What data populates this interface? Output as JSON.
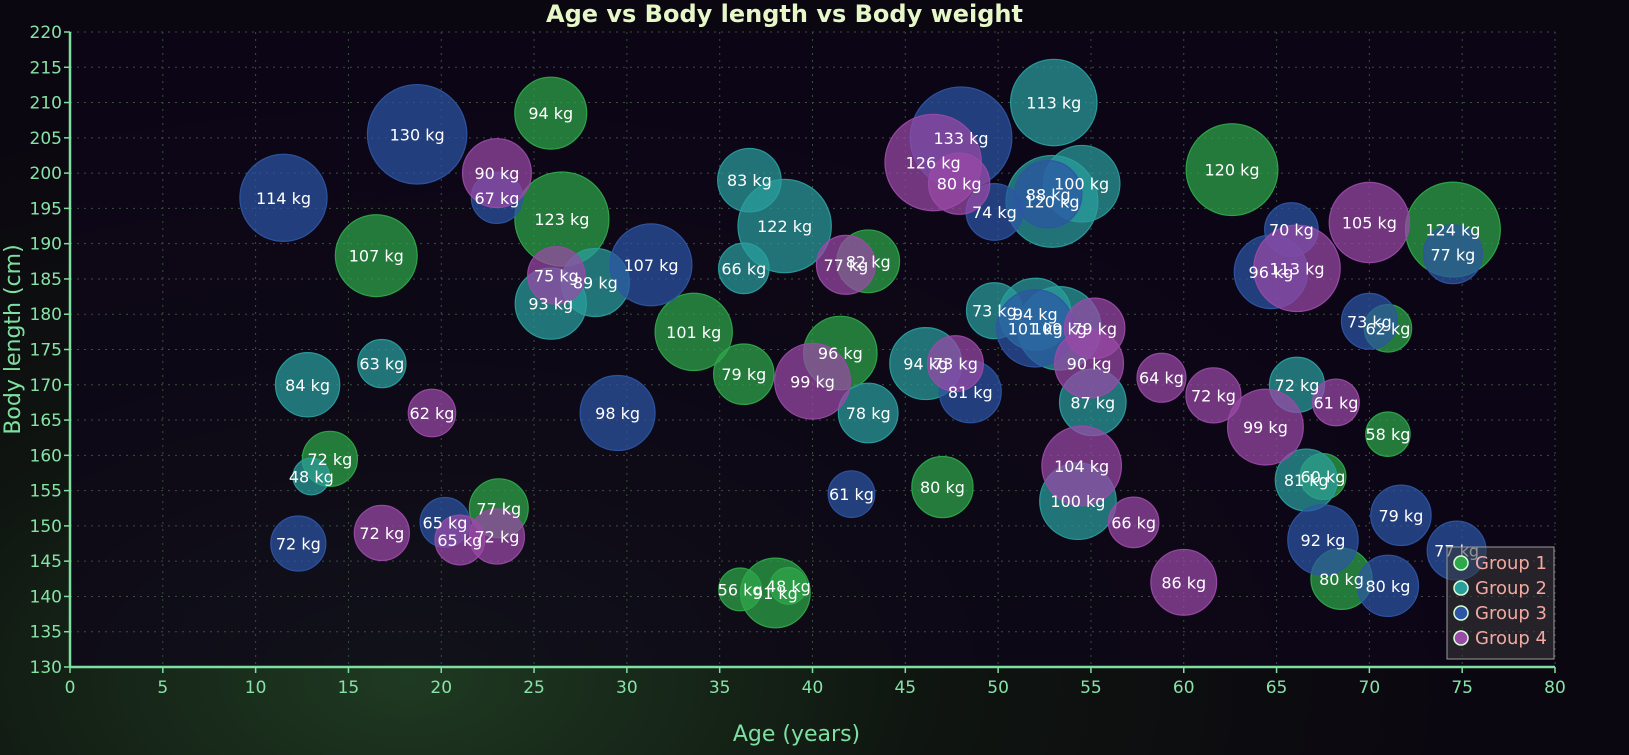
{
  "chart_data": {
    "type": "bubble",
    "title": "Age vs Body length vs Body weight",
    "xlabel": "Age (years)",
    "ylabel": "Body length (cm)",
    "xlim": [
      0,
      80
    ],
    "ylim": [
      130,
      220
    ],
    "x_ticks": [
      0,
      5,
      10,
      15,
      20,
      25,
      30,
      35,
      40,
      45,
      50,
      55,
      60,
      65,
      70,
      75,
      80
    ],
    "y_ticks": [
      130,
      135,
      140,
      145,
      150,
      155,
      160,
      165,
      170,
      175,
      180,
      185,
      190,
      195,
      200,
      205,
      210,
      215,
      220
    ],
    "grid": true,
    "unit": "kg",
    "legend_position": "bottom-right",
    "series": [
      {
        "name": "Group 1",
        "color": "#2ea84a",
        "points": [
          {
            "age": 25.9,
            "length": 208.5,
            "weight": 94
          },
          {
            "age": 26.5,
            "length": 193.5,
            "weight": 123
          },
          {
            "age": 16.5,
            "length": 188.3,
            "weight": 107
          },
          {
            "age": 14.0,
            "length": 159.5,
            "weight": 72
          },
          {
            "age": 23.1,
            "length": 152.5,
            "weight": 77
          },
          {
            "age": 33.6,
            "length": 177.5,
            "weight": 101
          },
          {
            "age": 36.3,
            "length": 171.5,
            "weight": 79
          },
          {
            "age": 38.0,
            "length": 140.5,
            "weight": 91
          },
          {
            "age": 36.1,
            "length": 141.0,
            "weight": 56
          },
          {
            "age": 38.7,
            "length": 141.5,
            "weight": 48
          },
          {
            "age": 43.0,
            "length": 187.5,
            "weight": 82
          },
          {
            "age": 41.5,
            "length": 174.5,
            "weight": 96
          },
          {
            "age": 47.0,
            "length": 155.5,
            "weight": 80
          },
          {
            "age": 62.6,
            "length": 200.5,
            "weight": 120
          },
          {
            "age": 74.5,
            "length": 192.0,
            "weight": 124
          },
          {
            "age": 71.0,
            "length": 178.0,
            "weight": 62
          },
          {
            "age": 71.0,
            "length": 163.0,
            "weight": 58
          },
          {
            "age": 67.5,
            "length": 157.0,
            "weight": 60
          },
          {
            "age": 68.5,
            "length": 142.5,
            "weight": 80
          }
        ]
      },
      {
        "name": "Group 2",
        "color": "#2a9e9c",
        "points": [
          {
            "age": 12.8,
            "length": 170.0,
            "weight": 84
          },
          {
            "age": 16.8,
            "length": 173.0,
            "weight": 63
          },
          {
            "age": 13.0,
            "length": 157.0,
            "weight": 48
          },
          {
            "age": 25.9,
            "length": 181.5,
            "weight": 93
          },
          {
            "age": 28.3,
            "length": 184.5,
            "weight": 89
          },
          {
            "age": 36.6,
            "length": 199.0,
            "weight": 83
          },
          {
            "age": 38.5,
            "length": 192.5,
            "weight": 122
          },
          {
            "age": 36.3,
            "length": 186.5,
            "weight": 66
          },
          {
            "age": 43.0,
            "length": 166.0,
            "weight": 78
          },
          {
            "age": 46.1,
            "length": 173.0,
            "weight": 94
          },
          {
            "age": 49.8,
            "length": 180.5,
            "weight": 73
          },
          {
            "age": 52.0,
            "length": 180.0,
            "weight": 94
          },
          {
            "age": 53.3,
            "length": 178.0,
            "weight": 109
          },
          {
            "age": 54.5,
            "length": 198.5,
            "weight": 100
          },
          {
            "age": 52.9,
            "length": 196.0,
            "weight": 120
          },
          {
            "age": 53.0,
            "length": 210.0,
            "weight": 113
          },
          {
            "age": 54.3,
            "length": 153.5,
            "weight": 100
          },
          {
            "age": 55.1,
            "length": 167.5,
            "weight": 87
          },
          {
            "age": 66.1,
            "length": 170.0,
            "weight": 72
          },
          {
            "age": 66.6,
            "length": 156.5,
            "weight": 81
          }
        ]
      },
      {
        "name": "Group 3",
        "color": "#2d55a3",
        "points": [
          {
            "age": 11.5,
            "length": 196.5,
            "weight": 114
          },
          {
            "age": 18.7,
            "length": 205.5,
            "weight": 130
          },
          {
            "age": 31.3,
            "length": 187.0,
            "weight": 107
          },
          {
            "age": 29.5,
            "length": 166.0,
            "weight": 98
          },
          {
            "age": 12.3,
            "length": 147.5,
            "weight": 72
          },
          {
            "age": 20.2,
            "length": 150.5,
            "weight": 65
          },
          {
            "age": 23.0,
            "length": 196.5,
            "weight": 67
          },
          {
            "age": 42.1,
            "length": 154.5,
            "weight": 61
          },
          {
            "age": 48.0,
            "length": 205.0,
            "weight": 133
          },
          {
            "age": 48.5,
            "length": 169.0,
            "weight": 81
          },
          {
            "age": 49.8,
            "length": 194.5,
            "weight": 74
          },
          {
            "age": 52.7,
            "length": 197.0,
            "weight": 88
          },
          {
            "age": 52.0,
            "length": 178.0,
            "weight": 101
          },
          {
            "age": 64.7,
            "length": 186.0,
            "weight": 96
          },
          {
            "age": 65.8,
            "length": 192.0,
            "weight": 70
          },
          {
            "age": 67.5,
            "length": 148.0,
            "weight": 92
          },
          {
            "age": 71.0,
            "length": 141.5,
            "weight": 80
          },
          {
            "age": 71.7,
            "length": 151.5,
            "weight": 79
          },
          {
            "age": 74.7,
            "length": 146.5,
            "weight": 77
          },
          {
            "age": 74.5,
            "length": 188.5,
            "weight": 77
          },
          {
            "age": 70.0,
            "length": 179.0,
            "weight": 73
          }
        ]
      },
      {
        "name": "Group 4",
        "color": "#9a4aa7",
        "points": [
          {
            "age": 23.0,
            "length": 200.0,
            "weight": 90
          },
          {
            "age": 26.2,
            "length": 185.5,
            "weight": 75
          },
          {
            "age": 19.5,
            "length": 166.0,
            "weight": 62
          },
          {
            "age": 16.8,
            "length": 149.0,
            "weight": 72
          },
          {
            "age": 21.0,
            "length": 148.0,
            "weight": 65
          },
          {
            "age": 23.0,
            "length": 148.5,
            "weight": 72
          },
          {
            "age": 40.0,
            "length": 170.5,
            "weight": 99
          },
          {
            "age": 41.8,
            "length": 187.0,
            "weight": 77
          },
          {
            "age": 46.5,
            "length": 201.5,
            "weight": 126
          },
          {
            "age": 47.9,
            "length": 198.5,
            "weight": 80
          },
          {
            "age": 47.7,
            "length": 173.0,
            "weight": 73
          },
          {
            "age": 55.2,
            "length": 178.0,
            "weight": 79
          },
          {
            "age": 54.9,
            "length": 173.0,
            "weight": 90
          },
          {
            "age": 54.5,
            "length": 158.5,
            "weight": 104
          },
          {
            "age": 57.3,
            "length": 150.5,
            "weight": 66
          },
          {
            "age": 58.8,
            "length": 171.0,
            "weight": 64
          },
          {
            "age": 60.0,
            "length": 142.0,
            "weight": 86
          },
          {
            "age": 61.6,
            "length": 168.5,
            "weight": 72
          },
          {
            "age": 64.4,
            "length": 164.0,
            "weight": 99
          },
          {
            "age": 66.1,
            "length": 186.5,
            "weight": 113
          },
          {
            "age": 70.0,
            "length": 193.0,
            "weight": 105
          },
          {
            "age": 68.2,
            "length": 167.5,
            "weight": 61
          }
        ]
      }
    ]
  }
}
